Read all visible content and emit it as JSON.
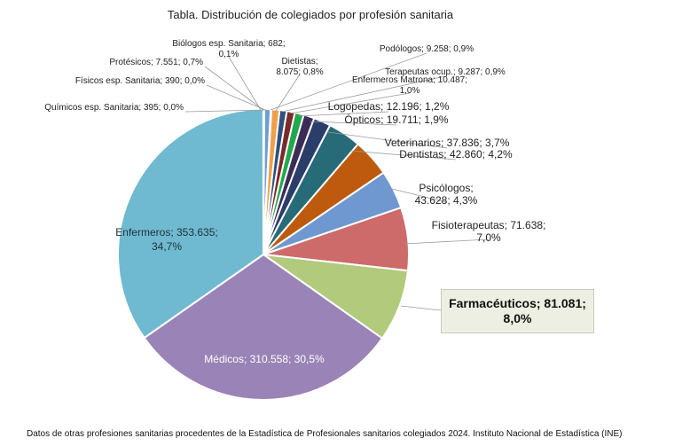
{
  "chart_data": {
    "type": "pie",
    "title": "Tabla. Distribución de colegiados por profesión sanitaria",
    "start": "12 o'clock, clockwise",
    "slices": [
      {
        "name": "Biólogos esp. Sanitaria",
        "value": "682",
        "pct": "0,1%",
        "fraction": 0.001,
        "color": "#8a72b5"
      },
      {
        "name": "Protésicos",
        "value": "7.551",
        "pct": "0,7%",
        "fraction": 0.007,
        "color": "#6a9fd3"
      },
      {
        "name": "Físicos esp. Sanitaria",
        "value": "390",
        "pct": "0,0%",
        "fraction": 0.0004,
        "color": "#3f8fd1"
      },
      {
        "name": "Químicos esp. Sanitaria",
        "value": "395",
        "pct": "0,0%",
        "fraction": 0.0004,
        "color": "#4b87b5"
      },
      {
        "name": "Podólogos",
        "value": "9.258",
        "pct": "0,9%",
        "fraction": 0.009,
        "color": "#f0a04a"
      },
      {
        "name": "Dietistas",
        "value": "8.075",
        "pct": "0,8%",
        "fraction": 0.008,
        "color": "#2f4f7f"
      },
      {
        "name": "Terapeutas ocup.",
        "value": "9.287",
        "pct": "0,9%",
        "fraction": 0.009,
        "color": "#7a2a2a"
      },
      {
        "name": "Enfermeros Matrona",
        "value": "10.487",
        "pct": "1,0%",
        "fraction": 0.01,
        "color": "#22a84a"
      },
      {
        "name": "Logopedas",
        "value": "12.196",
        "pct": "1,2%",
        "fraction": 0.012,
        "color": "#3d2b57"
      },
      {
        "name": "Ópticos",
        "value": "19.711",
        "pct": "1,9%",
        "fraction": 0.019,
        "color": "#2b3e69"
      },
      {
        "name": "Veterinarios",
        "value": "37.836",
        "pct": "3,7%",
        "fraction": 0.037,
        "color": "#276a78"
      },
      {
        "name": "Dentistas",
        "value": "42.860",
        "pct": "4,2%",
        "fraction": 0.042,
        "color": "#bd5a0d"
      },
      {
        "name": "Psicólogos",
        "value": "43.628",
        "pct": "4,3%",
        "fraction": 0.043,
        "color": "#6e98cf"
      },
      {
        "name": "Fisioterapeutas",
        "value": "71.638",
        "pct": "7,0%",
        "fraction": 0.07,
        "color": "#cd6b6b"
      },
      {
        "name": "Farmacéuticos",
        "value": "81.081",
        "pct": "8,0%",
        "fraction": 0.08,
        "color": "#b1ca7c"
      },
      {
        "name": "Médicos",
        "value": "310.558",
        "pct": "30,5%",
        "fraction": 0.305,
        "color": "#9a83b6"
      },
      {
        "name": "Enfermeros",
        "value": "353.635",
        "pct": "34,7%",
        "fraction": 0.347,
        "color": "#6fbad0"
      }
    ],
    "labels": [
      {
        "idx": 0,
        "lines": [
          "Biólogos esp. Sanitaria; 682;",
          "0,1%"
        ]
      },
      {
        "idx": 1,
        "lines": [
          "Protésicos; 7.551; 0,7%"
        ]
      },
      {
        "idx": 2,
        "lines": [
          "Físicos esp. Sanitaria; 390; 0,0%"
        ]
      },
      {
        "idx": 3,
        "lines": [
          "Químicos esp. Sanitaria; 395; 0,0%"
        ]
      },
      {
        "idx": 4,
        "lines": [
          "Podólogos; 9.258; 0,9%"
        ]
      },
      {
        "idx": 5,
        "lines": [
          "Dietistas;",
          "8.075; 0,8%"
        ]
      },
      {
        "idx": 6,
        "lines": [
          "Terapeutas ocup.; 9.287; 0,9%"
        ]
      },
      {
        "idx": 7,
        "lines": [
          "Enfermeros Matrona; 10.487;",
          "1,0%"
        ]
      },
      {
        "idx": 8,
        "lines": [
          "Logopedas; 12.196; 1,2%"
        ]
      },
      {
        "idx": 9,
        "lines": [
          "Ópticos; 19.711; 1,9%"
        ]
      },
      {
        "idx": 10,
        "lines": [
          "Veterinarios; 37.836; 3,7%"
        ]
      },
      {
        "idx": 11,
        "lines": [
          "Dentistas; 42.860; 4,2%"
        ]
      },
      {
        "idx": 12,
        "lines": [
          "Psicólogos;",
          "43.628; 4,3%"
        ]
      },
      {
        "idx": 13,
        "lines": [
          "Fisioterapeutas; 71.638;",
          "7,0%"
        ]
      },
      {
        "idx": 15,
        "lines": [
          "Médicos; 310.558; 30,5%"
        ]
      },
      {
        "idx": 16,
        "lines": [
          "Enfermeros; 353.635;",
          "34,7%"
        ]
      }
    ],
    "highlight": {
      "idx": 14,
      "lines": [
        "Farmacéuticos;  81.081;",
        "8,0%"
      ]
    }
  },
  "footer": "Datos de otras profesiones sanitarias procedentes de la Estadística de Profesionales sanitarios colegiados 2024. Instituto Nacional de Estadística (INE)"
}
